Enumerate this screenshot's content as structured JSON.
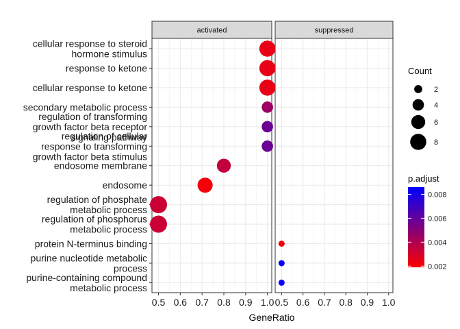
{
  "chart_data": {
    "type": "scatter",
    "subtype": "dot-plot",
    "title": "",
    "xlabel": "GeneRatio",
    "ylabel": "",
    "xlim": [
      0.47,
      1.02
    ],
    "xticks": [
      0.5,
      0.6,
      0.7,
      0.8,
      0.9,
      1.0
    ],
    "xtick_labels": [
      "0.5",
      "0.6",
      "0.7",
      "0.8",
      "0.9",
      "1.0"
    ],
    "grid": true,
    "panels": [
      "activated",
      "suppressed"
    ],
    "categories": [
      "cellular response to steroid hormone stimulus",
      "response to ketone",
      "cellular response to ketone",
      "secondary metabolic process",
      "regulation of transforming growth factor beta receptor signaling pathway",
      "regulation of cellular response to transforming growth factor beta stimulus",
      "endosome membrane",
      "endosome",
      "regulation of phosphate metabolic process",
      "regulation of phosphorus metabolic process",
      "protein N-terminus binding",
      "purine nucleotide metabolic process",
      "purine-containing compound metabolic process"
    ],
    "category_lines": [
      [
        "cellular response to steroid",
        "hormone stimulus"
      ],
      [
        "response to ketone"
      ],
      [
        "cellular response to ketone"
      ],
      [
        "secondary metabolic process"
      ],
      [
        "regulation of transforming",
        "growth factor beta receptor",
        "signaling pathway"
      ],
      [
        "regulation of cellular",
        "response to transforming",
        "growth factor beta stimulus"
      ],
      [
        "endosome membrane"
      ],
      [
        "endosome"
      ],
      [
        "regulation of phosphate",
        "metabolic process"
      ],
      [
        "regulation of phosphorus",
        "metabolic process"
      ],
      [
        "protein N-terminus binding"
      ],
      [
        "purine nucleotide metabolic",
        "process"
      ],
      [
        "purine-containing compound",
        "metabolic process"
      ]
    ],
    "points": [
      {
        "panel": "activated",
        "category": "cellular response to steroid hormone stimulus",
        "x": 1.0,
        "count": 8,
        "p_adjust": 0.0025
      },
      {
        "panel": "activated",
        "category": "response to ketone",
        "x": 1.0,
        "count": 8,
        "p_adjust": 0.0025
      },
      {
        "panel": "activated",
        "category": "cellular response to ketone",
        "x": 1.0,
        "count": 8,
        "p_adjust": 0.0025
      },
      {
        "panel": "activated",
        "category": "secondary metabolic process",
        "x": 1.0,
        "count": 4,
        "p_adjust": 0.0045
      },
      {
        "panel": "activated",
        "category": "regulation of transforming growth factor beta receptor signaling pathway",
        "x": 1.0,
        "count": 4,
        "p_adjust": 0.0058
      },
      {
        "panel": "activated",
        "category": "regulation of cellular response to transforming growth factor beta stimulus",
        "x": 1.0,
        "count": 4,
        "p_adjust": 0.0058
      },
      {
        "panel": "activated",
        "category": "endosome membrane",
        "x": 0.8,
        "count": 6,
        "p_adjust": 0.0035
      },
      {
        "panel": "activated",
        "category": "endosome",
        "x": 0.714,
        "count": 7,
        "p_adjust": 0.0022
      },
      {
        "panel": "activated",
        "category": "regulation of phosphate metabolic process",
        "x": 0.5,
        "count": 9,
        "p_adjust": 0.0033
      },
      {
        "panel": "activated",
        "category": "regulation of phosphorus metabolic process",
        "x": 0.5,
        "count": 9,
        "p_adjust": 0.0033
      },
      {
        "panel": "suppressed",
        "category": "protein N-terminus binding",
        "x": 0.5,
        "count": 1,
        "p_adjust": 0.0022
      },
      {
        "panel": "suppressed",
        "category": "purine nucleotide metabolic process",
        "x": 0.5,
        "count": 1,
        "p_adjust": 0.0083
      },
      {
        "panel": "suppressed",
        "category": "purine-containing compound metabolic process",
        "x": 0.5,
        "count": 1,
        "p_adjust": 0.0083
      }
    ],
    "legend_count": {
      "title": "Count",
      "values": [
        2,
        4,
        6,
        8
      ],
      "labels": [
        "2",
        "4",
        "6",
        "8"
      ]
    },
    "legend_color": {
      "title": "p.adjust",
      "range": [
        0.0019,
        0.0086
      ],
      "ticks": [
        0.002,
        0.004,
        0.006,
        0.008
      ],
      "labels": [
        "0.002",
        "0.004",
        "0.006",
        "0.008"
      ],
      "low_color": "#FF0000",
      "high_color": "#0000FF"
    }
  }
}
